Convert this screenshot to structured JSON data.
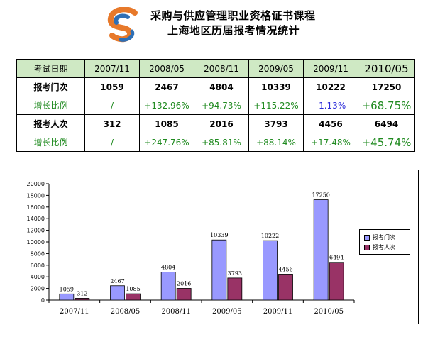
{
  "header": {
    "title_line1": "采购与供应管理职业资格证书课程",
    "title_line2": "上海地区历届报考情况统计"
  },
  "table": {
    "header_label": "考试日期",
    "periods": [
      "2007/11",
      "2008/05",
      "2008/11",
      "2009/05",
      "2009/11",
      "2010/05"
    ],
    "rows": [
      {
        "label": "报考门次",
        "values": [
          "1059",
          "2467",
          "4804",
          "10339",
          "10222",
          "17250"
        ],
        "style": "count"
      },
      {
        "label": "增长比例",
        "values": [
          "/",
          "+132.96%",
          "+94.73%",
          "+115.22%",
          "-1.13%",
          "+68.75%"
        ],
        "style": "growth"
      },
      {
        "label": "报考人次",
        "values": [
          "312",
          "1085",
          "2016",
          "3793",
          "4456",
          "6494"
        ],
        "style": "count"
      },
      {
        "label": "增长比例",
        "values": [
          "/",
          "+247.76%",
          "+85.81%",
          "+88.14%",
          "+17.48%",
          "+45.74%"
        ],
        "style": "growth"
      }
    ],
    "colors": {
      "header_bg": "#cfe9c4",
      "growth": "#1f8a1f",
      "negative": "#2b2bd9"
    }
  },
  "chart_data": {
    "type": "bar",
    "categories": [
      "2007/11",
      "2008/05",
      "2008/11",
      "2009/05",
      "2009/11",
      "2010/05"
    ],
    "series": [
      {
        "name": "报考门次",
        "values": [
          1059,
          2467,
          4804,
          10339,
          10222,
          17250
        ],
        "color": "#9999ff"
      },
      {
        "name": "报考人次",
        "values": [
          312,
          1085,
          2016,
          3793,
          4456,
          6494
        ],
        "color": "#993366"
      }
    ],
    "ylim": [
      0,
      20000
    ],
    "yticks": [
      "0",
      "2000",
      "4000",
      "6000",
      "8000",
      "10000",
      "12000",
      "14000",
      "16000",
      "18000",
      "20000"
    ],
    "data_labels": true,
    "legend": "right",
    "grid": false
  }
}
